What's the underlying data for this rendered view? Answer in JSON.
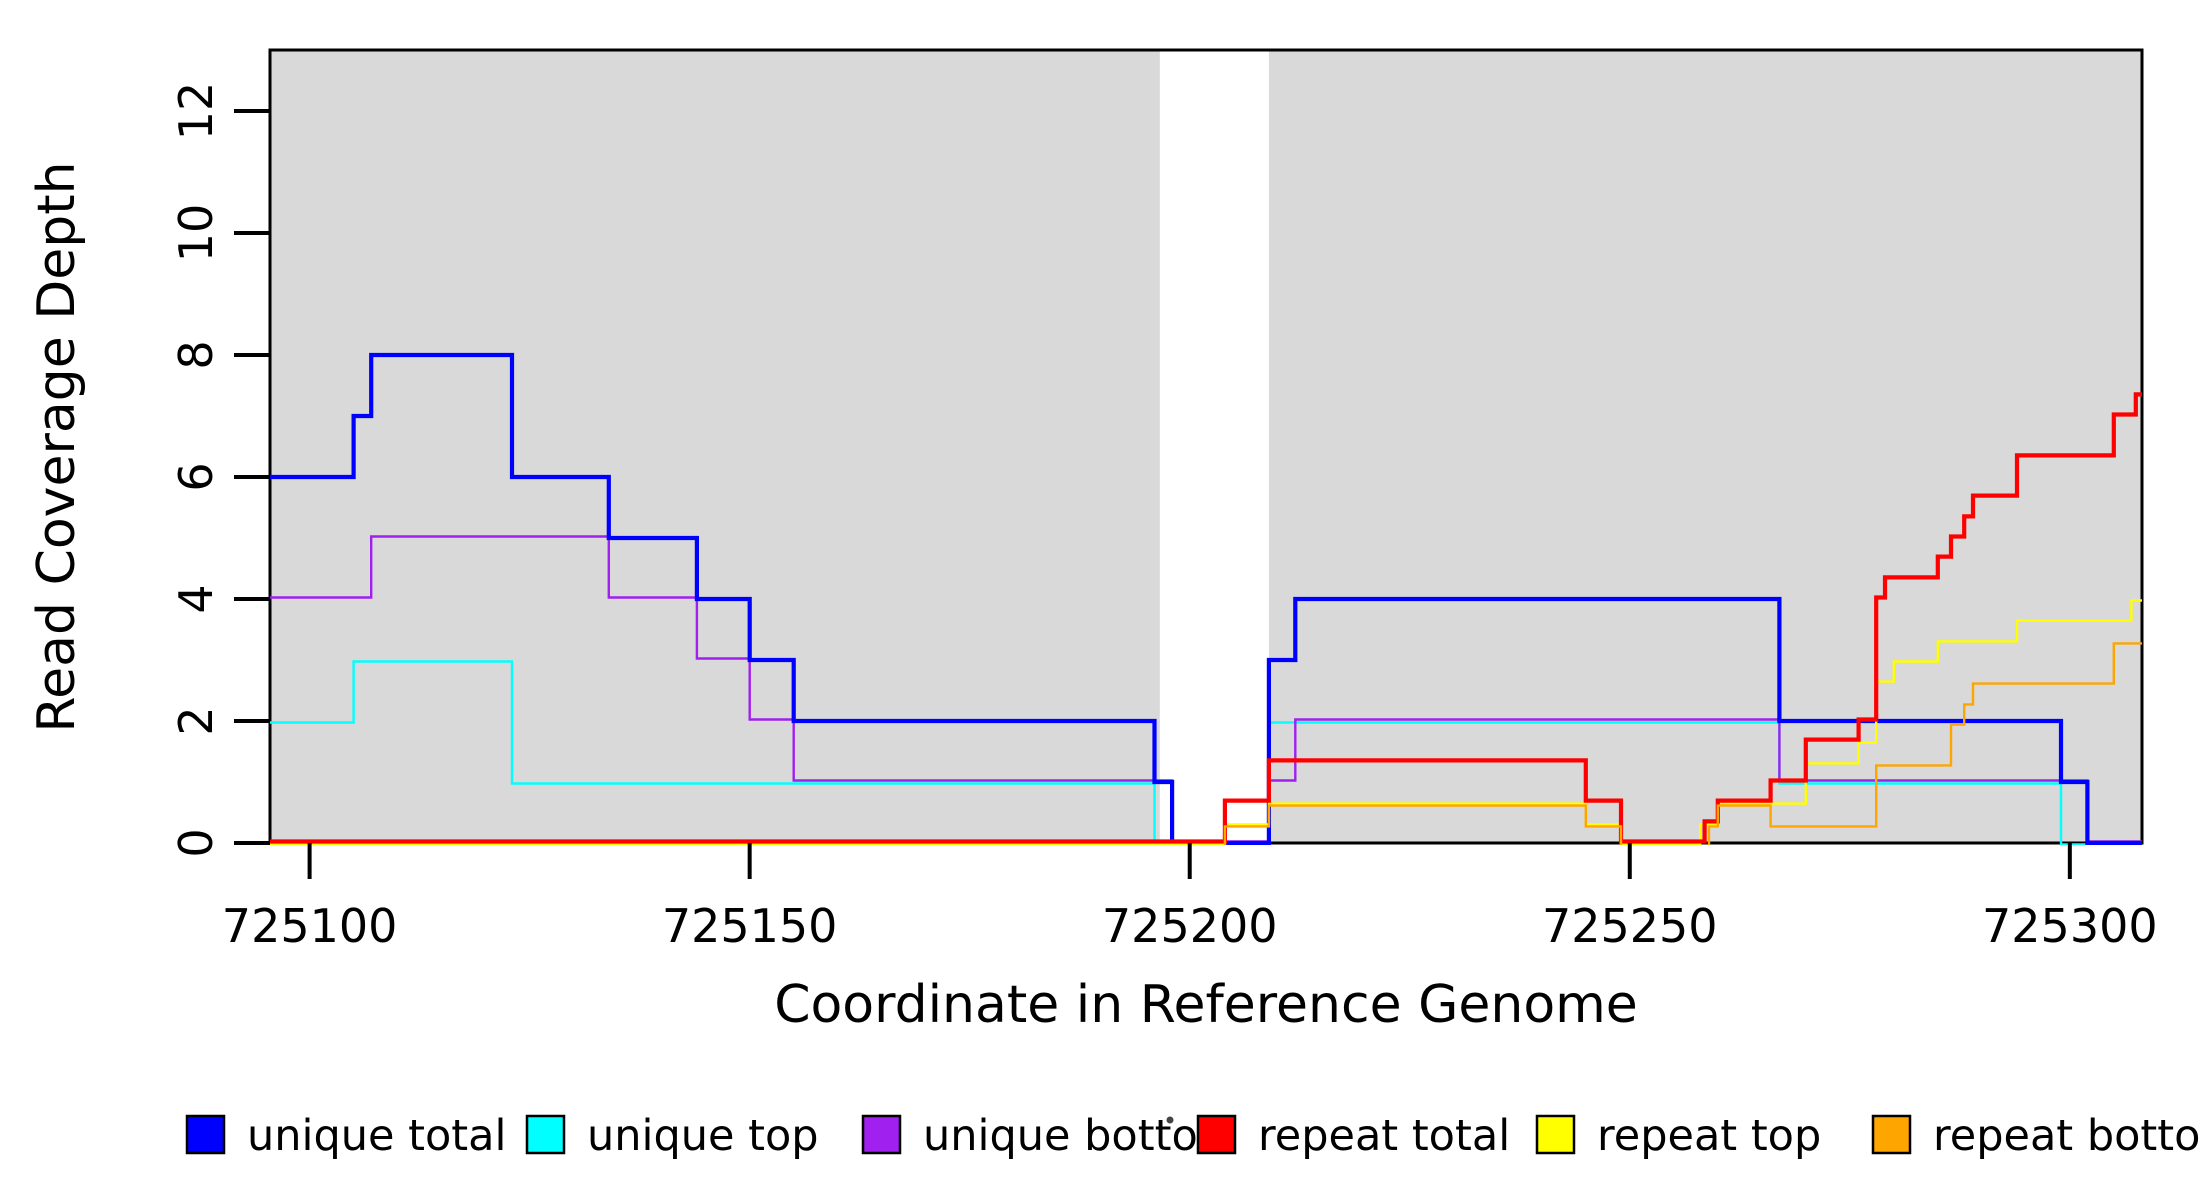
{
  "chart_data": {
    "type": "line",
    "subtype": "step-coverage-plot",
    "title": "",
    "xlabel": "Coordinate in Reference Genome",
    "ylabel": "Read Coverage Depth",
    "xlim": [
      725095.5,
      725308.2
    ],
    "ylim": [
      0,
      13
    ],
    "grid": false,
    "legend_position": "bottom",
    "x_ticks": [
      {
        "value": 725100,
        "label": "725100"
      },
      {
        "value": 725150,
        "label": "725150"
      },
      {
        "value": 725200,
        "label": "725200"
      },
      {
        "value": 725250,
        "label": "725250"
      },
      {
        "value": 725300,
        "label": "725300"
      }
    ],
    "y_ticks": [
      {
        "value": 0,
        "label": "0"
      },
      {
        "value": 2,
        "label": "2"
      },
      {
        "value": 4,
        "label": "4"
      },
      {
        "value": 6,
        "label": "6"
      },
      {
        "value": 8,
        "label": "8"
      },
      {
        "value": 10,
        "label": "10"
      },
      {
        "value": 12,
        "label": "12"
      }
    ],
    "shaded_regions": {
      "color": "#d9d9d9",
      "note": "gray alignment blocks with a white unaligned gap between them",
      "ranges": [
        [
          725095.5,
          725196.6
        ],
        [
          725209.0,
          725308.2
        ]
      ]
    },
    "series": [
      {
        "name": "unique total",
        "color": "#0000ff",
        "width": 4.2,
        "steps": [
          [
            725095.5,
            6
          ],
          [
            725105,
            7
          ],
          [
            725107,
            8
          ],
          [
            725123,
            6
          ],
          [
            725134,
            5
          ],
          [
            725144,
            4
          ],
          [
            725150,
            3
          ],
          [
            725155,
            2
          ],
          [
            725196,
            1
          ],
          [
            725198,
            0
          ],
          [
            725209,
            3
          ],
          [
            725212,
            4
          ],
          [
            725267,
            2
          ],
          [
            725299,
            1
          ],
          [
            725302,
            0
          ]
        ]
      },
      {
        "name": "unique top",
        "color": "#00ffff",
        "width": 2.4,
        "steps": [
          [
            725095.5,
            2
          ],
          [
            725105,
            3
          ],
          [
            725123,
            1
          ],
          [
            725196,
            0
          ],
          [
            725209,
            2
          ],
          [
            725267,
            1
          ],
          [
            725299,
            0
          ]
        ]
      },
      {
        "name": "unique bottom",
        "color": "#a020f0",
        "width": 2.4,
        "steps": [
          [
            725095.5,
            4
          ],
          [
            725107,
            5
          ],
          [
            725134,
            4
          ],
          [
            725144,
            3
          ],
          [
            725150,
            2
          ],
          [
            725155,
            1
          ],
          [
            725198,
            0
          ],
          [
            725209,
            1
          ],
          [
            725212,
            2
          ],
          [
            725267,
            1
          ],
          [
            725302,
            0
          ]
        ]
      },
      {
        "name": "repeat total",
        "color": "#ff0000",
        "width": 4.2,
        "steps": [
          [
            725095.5,
            0
          ],
          [
            725204,
            0.67
          ],
          [
            725209,
            1.33
          ],
          [
            725245,
            0.67
          ],
          [
            725249,
            0
          ],
          [
            725258.5,
            0.33
          ],
          [
            725260,
            0.67
          ],
          [
            725266,
            1
          ],
          [
            725270,
            1.67
          ],
          [
            725276,
            2
          ],
          [
            725278,
            4
          ],
          [
            725279,
            4.33
          ],
          [
            725285,
            4.67
          ],
          [
            725286.5,
            5
          ],
          [
            725288,
            5.33
          ],
          [
            725289,
            5.67
          ],
          [
            725294,
            6.33
          ],
          [
            725305,
            7
          ],
          [
            725307.5,
            7.33
          ]
        ]
      },
      {
        "name": "repeat top",
        "color": "#ffff00",
        "width": 2.4,
        "steps": [
          [
            725095.5,
            0
          ],
          [
            725204,
            0.33
          ],
          [
            725209,
            0.67
          ],
          [
            725245,
            0.33
          ],
          [
            725249,
            0
          ],
          [
            725258,
            0.33
          ],
          [
            725260,
            0.67
          ],
          [
            725270,
            1.33
          ],
          [
            725276,
            1.67
          ],
          [
            725278,
            2.67
          ],
          [
            725280,
            3
          ],
          [
            725285,
            3.33
          ],
          [
            725294,
            3.67
          ],
          [
            725307,
            4
          ]
        ]
      },
      {
        "name": "repeat bottom",
        "color": "#ffa500",
        "width": 2.4,
        "steps": [
          [
            725095.5,
            0
          ],
          [
            725204,
            0.33
          ],
          [
            725209,
            0.67
          ],
          [
            725245,
            0.33
          ],
          [
            725249,
            0
          ],
          [
            725259,
            0.33
          ],
          [
            725260,
            0.67
          ],
          [
            725266,
            0.33
          ],
          [
            725278,
            1.33
          ],
          [
            725286.5,
            2
          ],
          [
            725288,
            2.33
          ],
          [
            725289,
            2.67
          ],
          [
            725305,
            3.33
          ]
        ]
      }
    ],
    "draw_order": [
      1,
      2,
      0,
      4,
      3,
      5
    ],
    "axis_color": "#000000",
    "background_color": "#ffffff"
  }
}
